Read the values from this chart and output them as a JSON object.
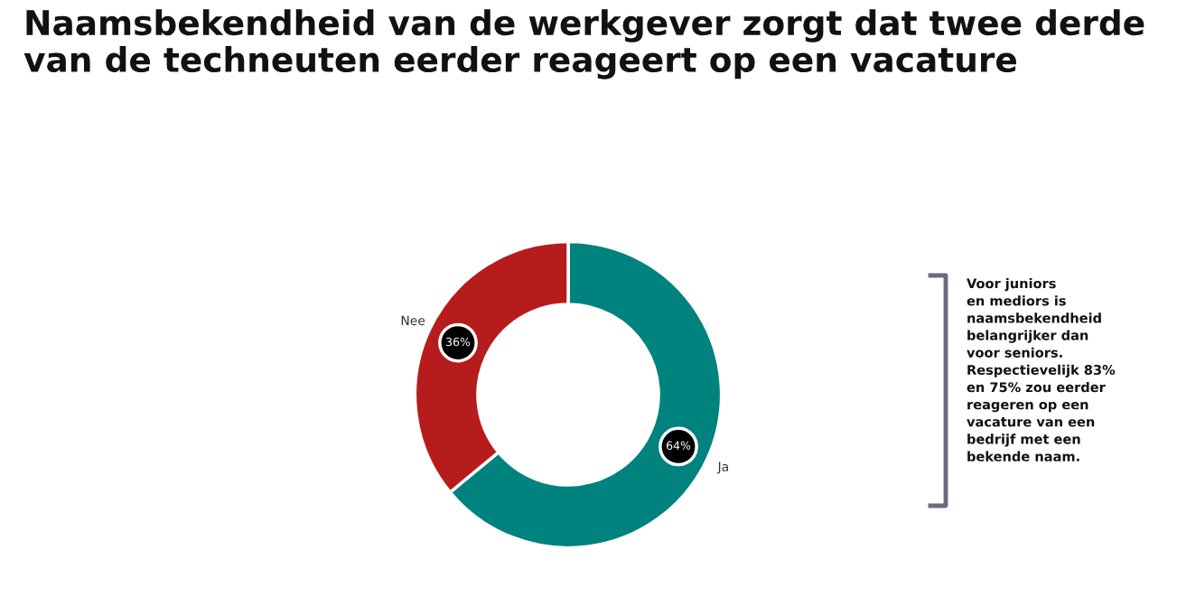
{
  "chart_data": {
    "type": "donut",
    "title": "Naamsbekendheid van de werkgever zorgt dat twee derde van de techneuten eerder reageert op een vacature",
    "categories": [
      "Ja",
      "Nee"
    ],
    "values": [
      64,
      36
    ],
    "colors": [
      "#00827f",
      "#b71c1c"
    ],
    "value_labels": [
      "64%",
      "36%"
    ],
    "annotations": [
      "Voor juniors\nen mediors is\nnaamsbekendheid\nbelangrijker dan\nvoor seniors.\nRespectievelijk 83%\nen 75% zou eerder\nreageren op een\nvacature van een\nbedrijf met een\nbekende naam."
    ],
    "legend": false
  }
}
